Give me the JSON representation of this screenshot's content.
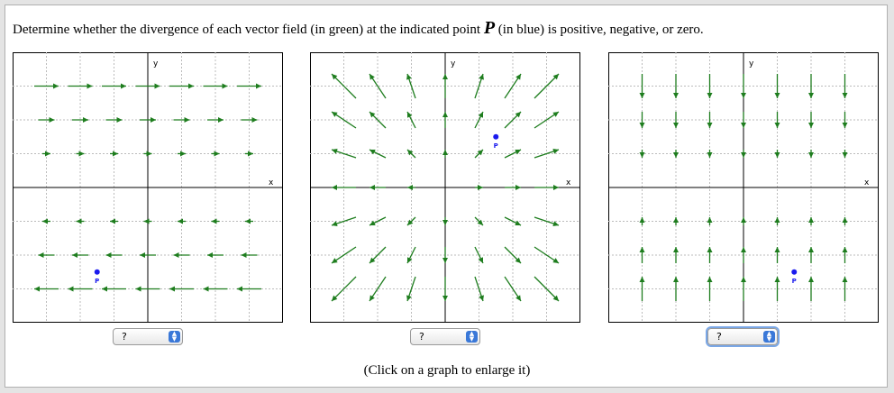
{
  "question": {
    "before": "Determine whether the divergence of each vector field (in green) at the indicated point",
    "point": "P",
    "after": "(in blue) is positive, negative, or zero."
  },
  "graphs": [
    {
      "x_label": "x",
      "y_label": "y",
      "point_label": "P",
      "answer": "?"
    },
    {
      "x_label": "x",
      "y_label": "y",
      "point_label": "P",
      "answer": "?"
    },
    {
      "x_label": "x",
      "y_label": "y",
      "point_label": "P",
      "answer": "?"
    }
  ],
  "caption": "(Click on a graph to enlarge it)"
}
